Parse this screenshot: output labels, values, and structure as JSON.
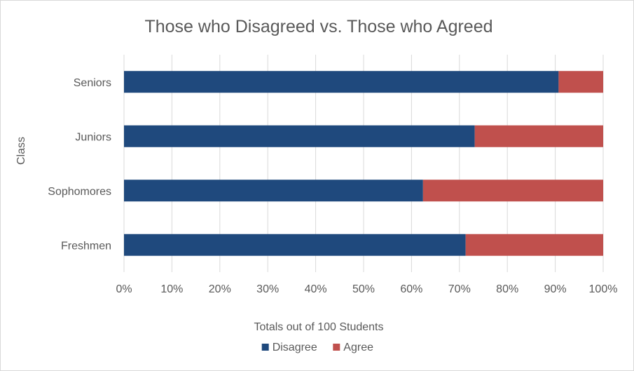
{
  "chart_data": {
    "type": "bar",
    "orientation": "horizontal",
    "stacked": "percent",
    "title": "Those who Disagreed vs. Those who Agreed",
    "xlabel": "Totals out of 100 Students",
    "ylabel": "Class",
    "categories": [
      "Seniors",
      "Juniors",
      "Sophomores",
      "Freshmen"
    ],
    "series": [
      {
        "name": "Disagree",
        "color": "#1f497d",
        "values": [
          90.7,
          73.2,
          62.4,
          71.3
        ]
      },
      {
        "name": "Agree",
        "color": "#c0504d",
        "values": [
          9.3,
          26.8,
          37.6,
          28.7
        ]
      }
    ],
    "xlim": [
      0,
      100
    ],
    "x_ticks": [
      "0%",
      "10%",
      "20%",
      "30%",
      "40%",
      "50%",
      "60%",
      "70%",
      "80%",
      "90%",
      "100%"
    ],
    "grid": "vertical",
    "legend_position": "bottom"
  }
}
